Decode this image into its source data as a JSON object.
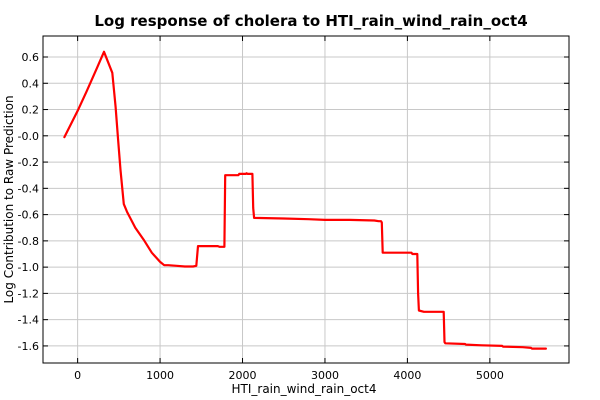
{
  "chart_data": {
    "type": "line",
    "title": "Log response of cholera to HTI_rain_wind_rain_oct4",
    "xlabel": "HTI_rain_wind_rain_oct4",
    "ylabel": "Log Contribution to Raw Prediction",
    "xlim": [
      -420,
      5960
    ],
    "ylim": [
      -1.73,
      0.76
    ],
    "xticks": [
      0,
      1000,
      2000,
      3000,
      4000,
      5000
    ],
    "xtick_labels": [
      "0",
      "1000",
      "2000",
      "3000",
      "4000",
      "5000"
    ],
    "yticks": [
      0.6,
      0.4,
      0.2,
      0.0,
      -0.2,
      -0.4,
      -0.6,
      -0.8,
      -1.0,
      -1.2,
      -1.4,
      -1.6
    ],
    "ytick_labels": [
      "0.6",
      "0.4",
      "0.2",
      "-0.0",
      "-0.2",
      "-0.4",
      "-0.6",
      "-0.8",
      "-1.0",
      "-1.2",
      "-1.4",
      "-1.6"
    ],
    "grid": true,
    "series": [
      {
        "color": "#ff0000",
        "x": [
          -160,
          0,
          110,
          230,
          320,
          420,
          460,
          490,
          520,
          560,
          600,
          700,
          800,
          900,
          1000,
          1050,
          1100,
          1200,
          1300,
          1350,
          1400,
          1440,
          1460,
          1700,
          1720,
          1780,
          1790,
          1800,
          1950,
          1960,
          2040,
          2050,
          2060,
          2120,
          2130,
          2140,
          2500,
          2800,
          3000,
          3300,
          3600,
          3650,
          3680,
          3690,
          3700,
          4050,
          4060,
          4120,
          4130,
          4140,
          4200,
          4260,
          4440,
          4450,
          4460,
          4700,
          4710,
          4900,
          5150,
          5160,
          5400,
          5500,
          5510,
          5680
        ],
        "y": [
          -0.01,
          0.19,
          0.34,
          0.51,
          0.64,
          0.48,
          0.22,
          -0.02,
          -0.26,
          -0.52,
          -0.58,
          -0.7,
          -0.79,
          -0.89,
          -0.96,
          -0.985,
          -0.985,
          -0.99,
          -0.995,
          -0.995,
          -0.995,
          -0.99,
          -0.84,
          -0.84,
          -0.845,
          -0.845,
          -0.3,
          -0.3,
          -0.3,
          -0.29,
          -0.29,
          -0.285,
          -0.29,
          -0.29,
          -0.55,
          -0.625,
          -0.63,
          -0.635,
          -0.64,
          -0.64,
          -0.645,
          -0.65,
          -0.65,
          -0.66,
          -0.89,
          -0.89,
          -0.9,
          -0.9,
          -1.2,
          -1.33,
          -1.34,
          -1.34,
          -1.34,
          -1.57,
          -1.58,
          -1.585,
          -1.59,
          -1.595,
          -1.6,
          -1.605,
          -1.61,
          -1.615,
          -1.62,
          -1.62
        ]
      }
    ]
  }
}
